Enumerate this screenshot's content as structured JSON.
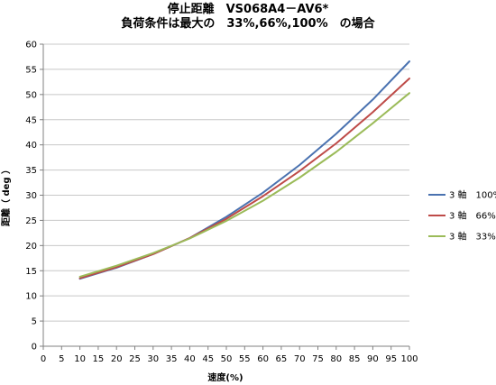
{
  "chart_data": {
    "type": "line",
    "title": [
      "停止距離　VS068A4－AV6*",
      "負荷条件は最大の　33%,66%,100%　の場合"
    ],
    "xlabel": "速度(%)",
    "ylabel": "距離（ deg ）",
    "xlim": [
      0,
      100
    ],
    "ylim": [
      0,
      60
    ],
    "xticks": [
      0,
      5,
      10,
      15,
      20,
      25,
      30,
      35,
      40,
      45,
      50,
      55,
      60,
      65,
      70,
      75,
      80,
      85,
      90,
      95,
      100
    ],
    "yticks": [
      0,
      5,
      10,
      15,
      20,
      25,
      30,
      35,
      40,
      45,
      50,
      55,
      60
    ],
    "grid": "horizontal",
    "legend_position": "right",
    "x": [
      10,
      20,
      30,
      40,
      50,
      60,
      70,
      80,
      90,
      100
    ],
    "series": [
      {
        "name": "3 軸　100%",
        "color": "#4a72b0",
        "values": [
          13.4,
          15.6,
          18.3,
          21.5,
          25.7,
          30.5,
          36.0,
          42.2,
          49.0,
          56.6
        ]
      },
      {
        "name": "3 軸　66%",
        "color": "#be4b48",
        "values": [
          13.5,
          15.7,
          18.3,
          21.5,
          25.3,
          29.8,
          34.8,
          40.3,
          46.5,
          53.2
        ]
      },
      {
        "name": "3 軸　33%",
        "color": "#9bbb59",
        "values": [
          13.8,
          16.0,
          18.5,
          21.4,
          24.9,
          28.9,
          33.5,
          38.6,
          44.3,
          50.3
        ]
      }
    ]
  }
}
